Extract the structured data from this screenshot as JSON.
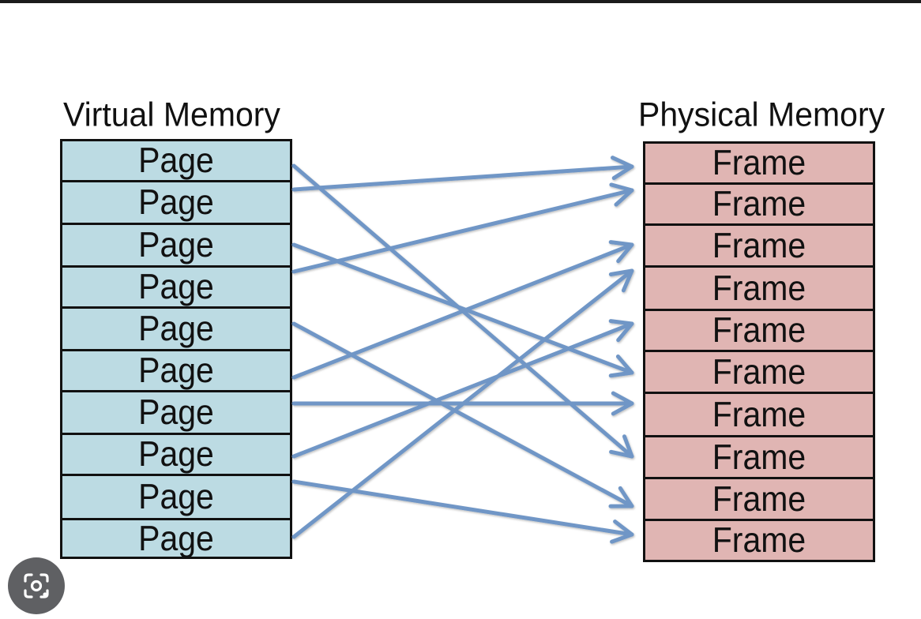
{
  "virtual_memory": {
    "title": "Virtual Memory",
    "pages": [
      "Page",
      "Page",
      "Page",
      "Page",
      "Page",
      "Page",
      "Page",
      "Page",
      "Page",
      "Page"
    ]
  },
  "physical_memory": {
    "title": "Physical Memory",
    "frames": [
      "Frame",
      "Frame",
      "Frame",
      "Frame",
      "Frame",
      "Frame",
      "Frame",
      "Frame",
      "Frame",
      "Frame"
    ]
  },
  "mappings": [
    {
      "page": 1,
      "frame": 8
    },
    {
      "page": 2,
      "frame": 1
    },
    {
      "page": 3,
      "frame": 6
    },
    {
      "page": 4,
      "frame": 2
    },
    {
      "page": 5,
      "frame": 9
    },
    {
      "page": 6,
      "frame": 3
    },
    {
      "page": 7,
      "frame": 7
    },
    {
      "page": 8,
      "frame": 5
    },
    {
      "page": 9,
      "frame": 10
    },
    {
      "page": 10,
      "frame": 4
    }
  ],
  "colors": {
    "page_fill": "#bcdbe3",
    "frame_fill": "#e0b5b3",
    "arrow": "#6f96c6",
    "border": "#111111"
  },
  "icons": {
    "lens_button": "lens-search-icon"
  }
}
